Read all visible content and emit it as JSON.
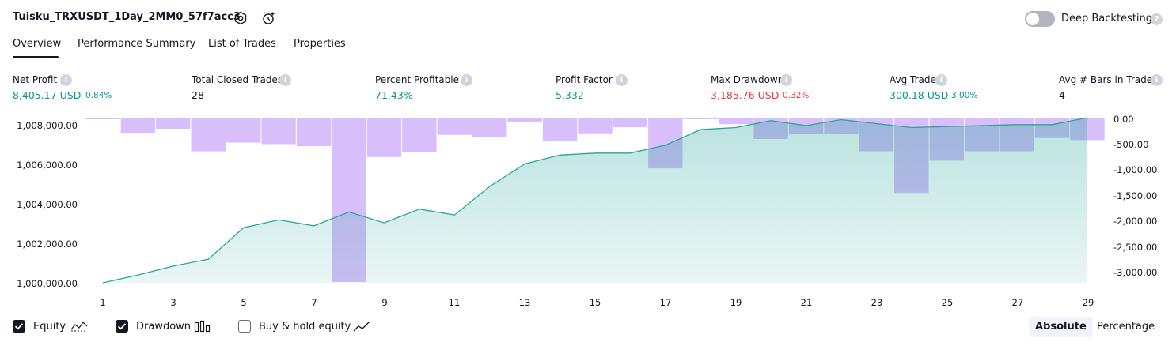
{
  "header": {
    "strategy_title": "Tuisku_TRXUSDT_1Day_2MM0_57f7acc3",
    "settings_icon": "hexagon-settings-icon",
    "alert_icon": "alarm-clock-add-icon",
    "deep_backtesting_label": "Deep Backtesting",
    "deep_backtesting_enabled": false
  },
  "tabs": [
    {
      "label": "Overview",
      "active": true
    },
    {
      "label": "Performance Summary",
      "active": false
    },
    {
      "label": "List of Trades",
      "active": false
    },
    {
      "label": "Properties",
      "active": false
    }
  ],
  "metrics": [
    {
      "label": "Net Profit",
      "value": "8,405.17 USD",
      "pct": "0.84%",
      "color": "#089981"
    },
    {
      "label": "Total Closed Trades",
      "value": "28",
      "pct": "",
      "color": "#131722"
    },
    {
      "label": "Percent Profitable",
      "value": "71.43%",
      "pct": "",
      "color": "#089981"
    },
    {
      "label": "Profit Factor",
      "value": "5.332",
      "pct": "",
      "color": "#089981"
    },
    {
      "label": "Max Drawdown",
      "value": "3,185.76 USD",
      "pct": "0.32%",
      "color": "#f23645"
    },
    {
      "label": "Avg Trade",
      "value": "300.18 USD",
      "pct": "3.00%",
      "color": "#089981"
    },
    {
      "label": "Avg # Bars in Trades",
      "value": "4",
      "pct": "",
      "color": "#131722"
    }
  ],
  "chart_data": {
    "type": "line",
    "x": [
      1,
      2,
      3,
      4,
      5,
      6,
      7,
      8,
      9,
      10,
      11,
      12,
      13,
      14,
      15,
      16,
      17,
      18,
      19,
      20,
      21,
      22,
      23,
      24,
      25,
      26,
      27,
      28,
      29
    ],
    "x_ticks": [
      "1",
      "3",
      "5",
      "7",
      "9",
      "11",
      "13",
      "15",
      "17",
      "19",
      "21",
      "23",
      "25",
      "27",
      "29"
    ],
    "series": [
      {
        "name": "Equity",
        "axis": "left",
        "style": "area",
        "color": "#26a69a",
        "values": [
          1000000,
          1000400,
          1000850,
          1001200,
          1002800,
          1003200,
          1002900,
          1003600,
          1003050,
          1003750,
          1003450,
          1004900,
          1006050,
          1006500,
          1006600,
          1006600,
          1007000,
          1007800,
          1007900,
          1008250,
          1008000,
          1008300,
          1008100,
          1007900,
          1007950,
          1008000,
          1008050,
          1008050,
          1008400
        ]
      },
      {
        "name": "Drawdown",
        "axis": "right",
        "style": "bar",
        "color": "#c8a2f8",
        "values": [
          0,
          -280,
          -200,
          -640,
          -470,
          -500,
          -540,
          -3185,
          -750,
          -660,
          -320,
          -370,
          -60,
          -440,
          -290,
          -170,
          -970,
          0,
          -110,
          -400,
          -300,
          -300,
          -640,
          -1450,
          -820,
          -640,
          -640,
          -380,
          -420
        ]
      }
    ],
    "ylim_left": [
      1000000,
      1008000
    ],
    "yticks_left": [
      "1,008,000.00",
      "1,006,000.00",
      "1,004,000.00",
      "1,002,000.00",
      "1,000,000.00"
    ],
    "ylim_right": [
      -3200,
      0
    ],
    "yticks_right": [
      "0.00",
      "-500.00",
      "-1,000.00",
      "-1,500.00",
      "-2,000.00",
      "-2,500.00",
      "-3,000.00"
    ],
    "grid": false
  },
  "legend_toggles": [
    {
      "label": "Equity",
      "checked": true,
      "icon": "equity-area-icon"
    },
    {
      "label": "Drawdown",
      "checked": true,
      "icon": "drawdown-bars-icon"
    },
    {
      "label": "Buy & hold equity",
      "checked": false,
      "icon": "buy-hold-line-icon"
    }
  ],
  "scale_toggle": {
    "absolute": "Absolute",
    "percentage": "Percentage",
    "selected": "Absolute"
  }
}
